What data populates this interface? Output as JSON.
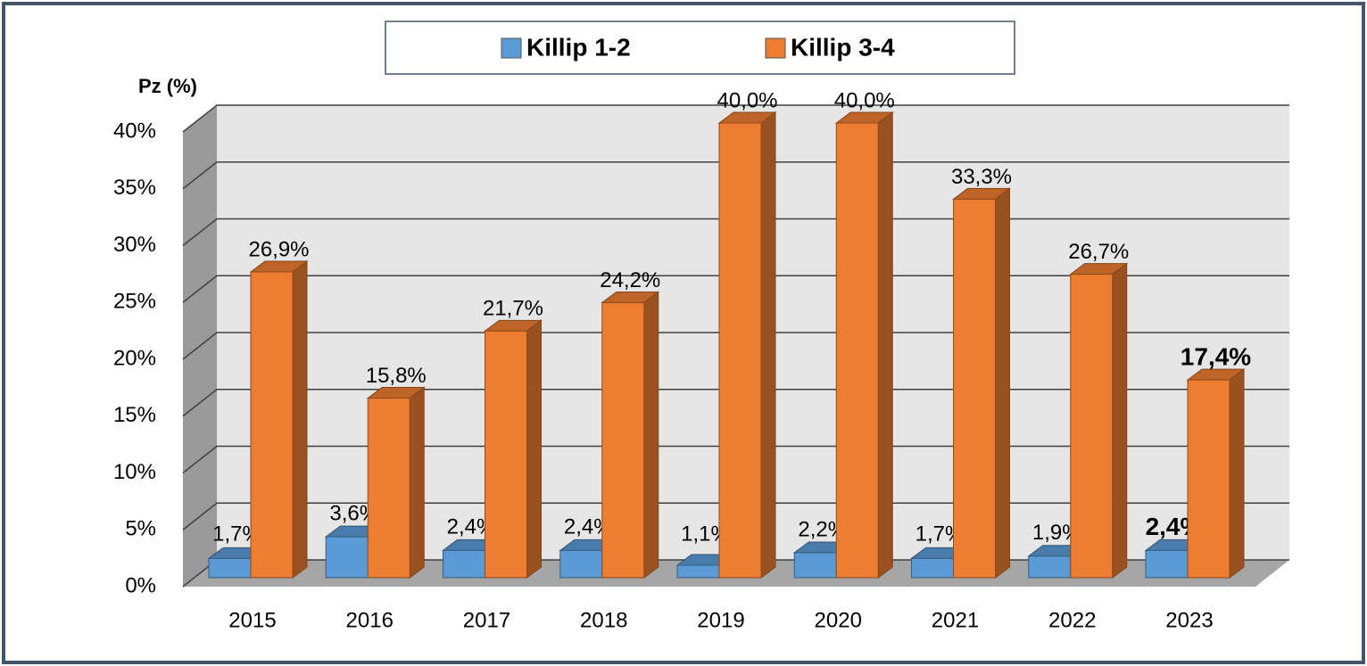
{
  "chart_data": {
    "type": "bar3d",
    "y_label": "Pz (%)",
    "categories": [
      "2015",
      "2016",
      "2017",
      "2018",
      "2019",
      "2020",
      "2021",
      "2022",
      "2023"
    ],
    "series": [
      {
        "name": "Killip 1-2",
        "color": "#5b9bd5",
        "values": [
          1.7,
          3.6,
          2.4,
          2.4,
          1.1,
          2.2,
          1.7,
          1.9,
          2.4
        ],
        "value_labels": [
          "1,7%",
          "3,6%",
          "2,4%",
          "2,4%",
          "1,1%",
          "2,2%",
          "1,7%",
          "1,9%",
          "2,4%"
        ]
      },
      {
        "name": "Killip 3-4",
        "color": "#ed7d31",
        "values": [
          26.9,
          15.8,
          21.7,
          24.2,
          40.0,
          40.0,
          33.3,
          26.7,
          17.4
        ],
        "value_labels": [
          "26,9%",
          "15,8%",
          "21,7%",
          "24,2%",
          "40,0%",
          "40,0%",
          "33,3%",
          "26,7%",
          "17,4%"
        ]
      }
    ],
    "ylim": [
      0,
      40
    ],
    "yticks": [
      {
        "value": 0,
        "label": "0%"
      },
      {
        "value": 5,
        "label": "5%"
      },
      {
        "value": 10,
        "label": "10%"
      },
      {
        "value": 15,
        "label": "15%"
      },
      {
        "value": 20,
        "label": "20%"
      },
      {
        "value": 25,
        "label": "25%"
      },
      {
        "value": 30,
        "label": "30%"
      },
      {
        "value": 35,
        "label": "35%"
      },
      {
        "value": 40,
        "label": "40%"
      }
    ],
    "grid": true,
    "legend": "top"
  }
}
